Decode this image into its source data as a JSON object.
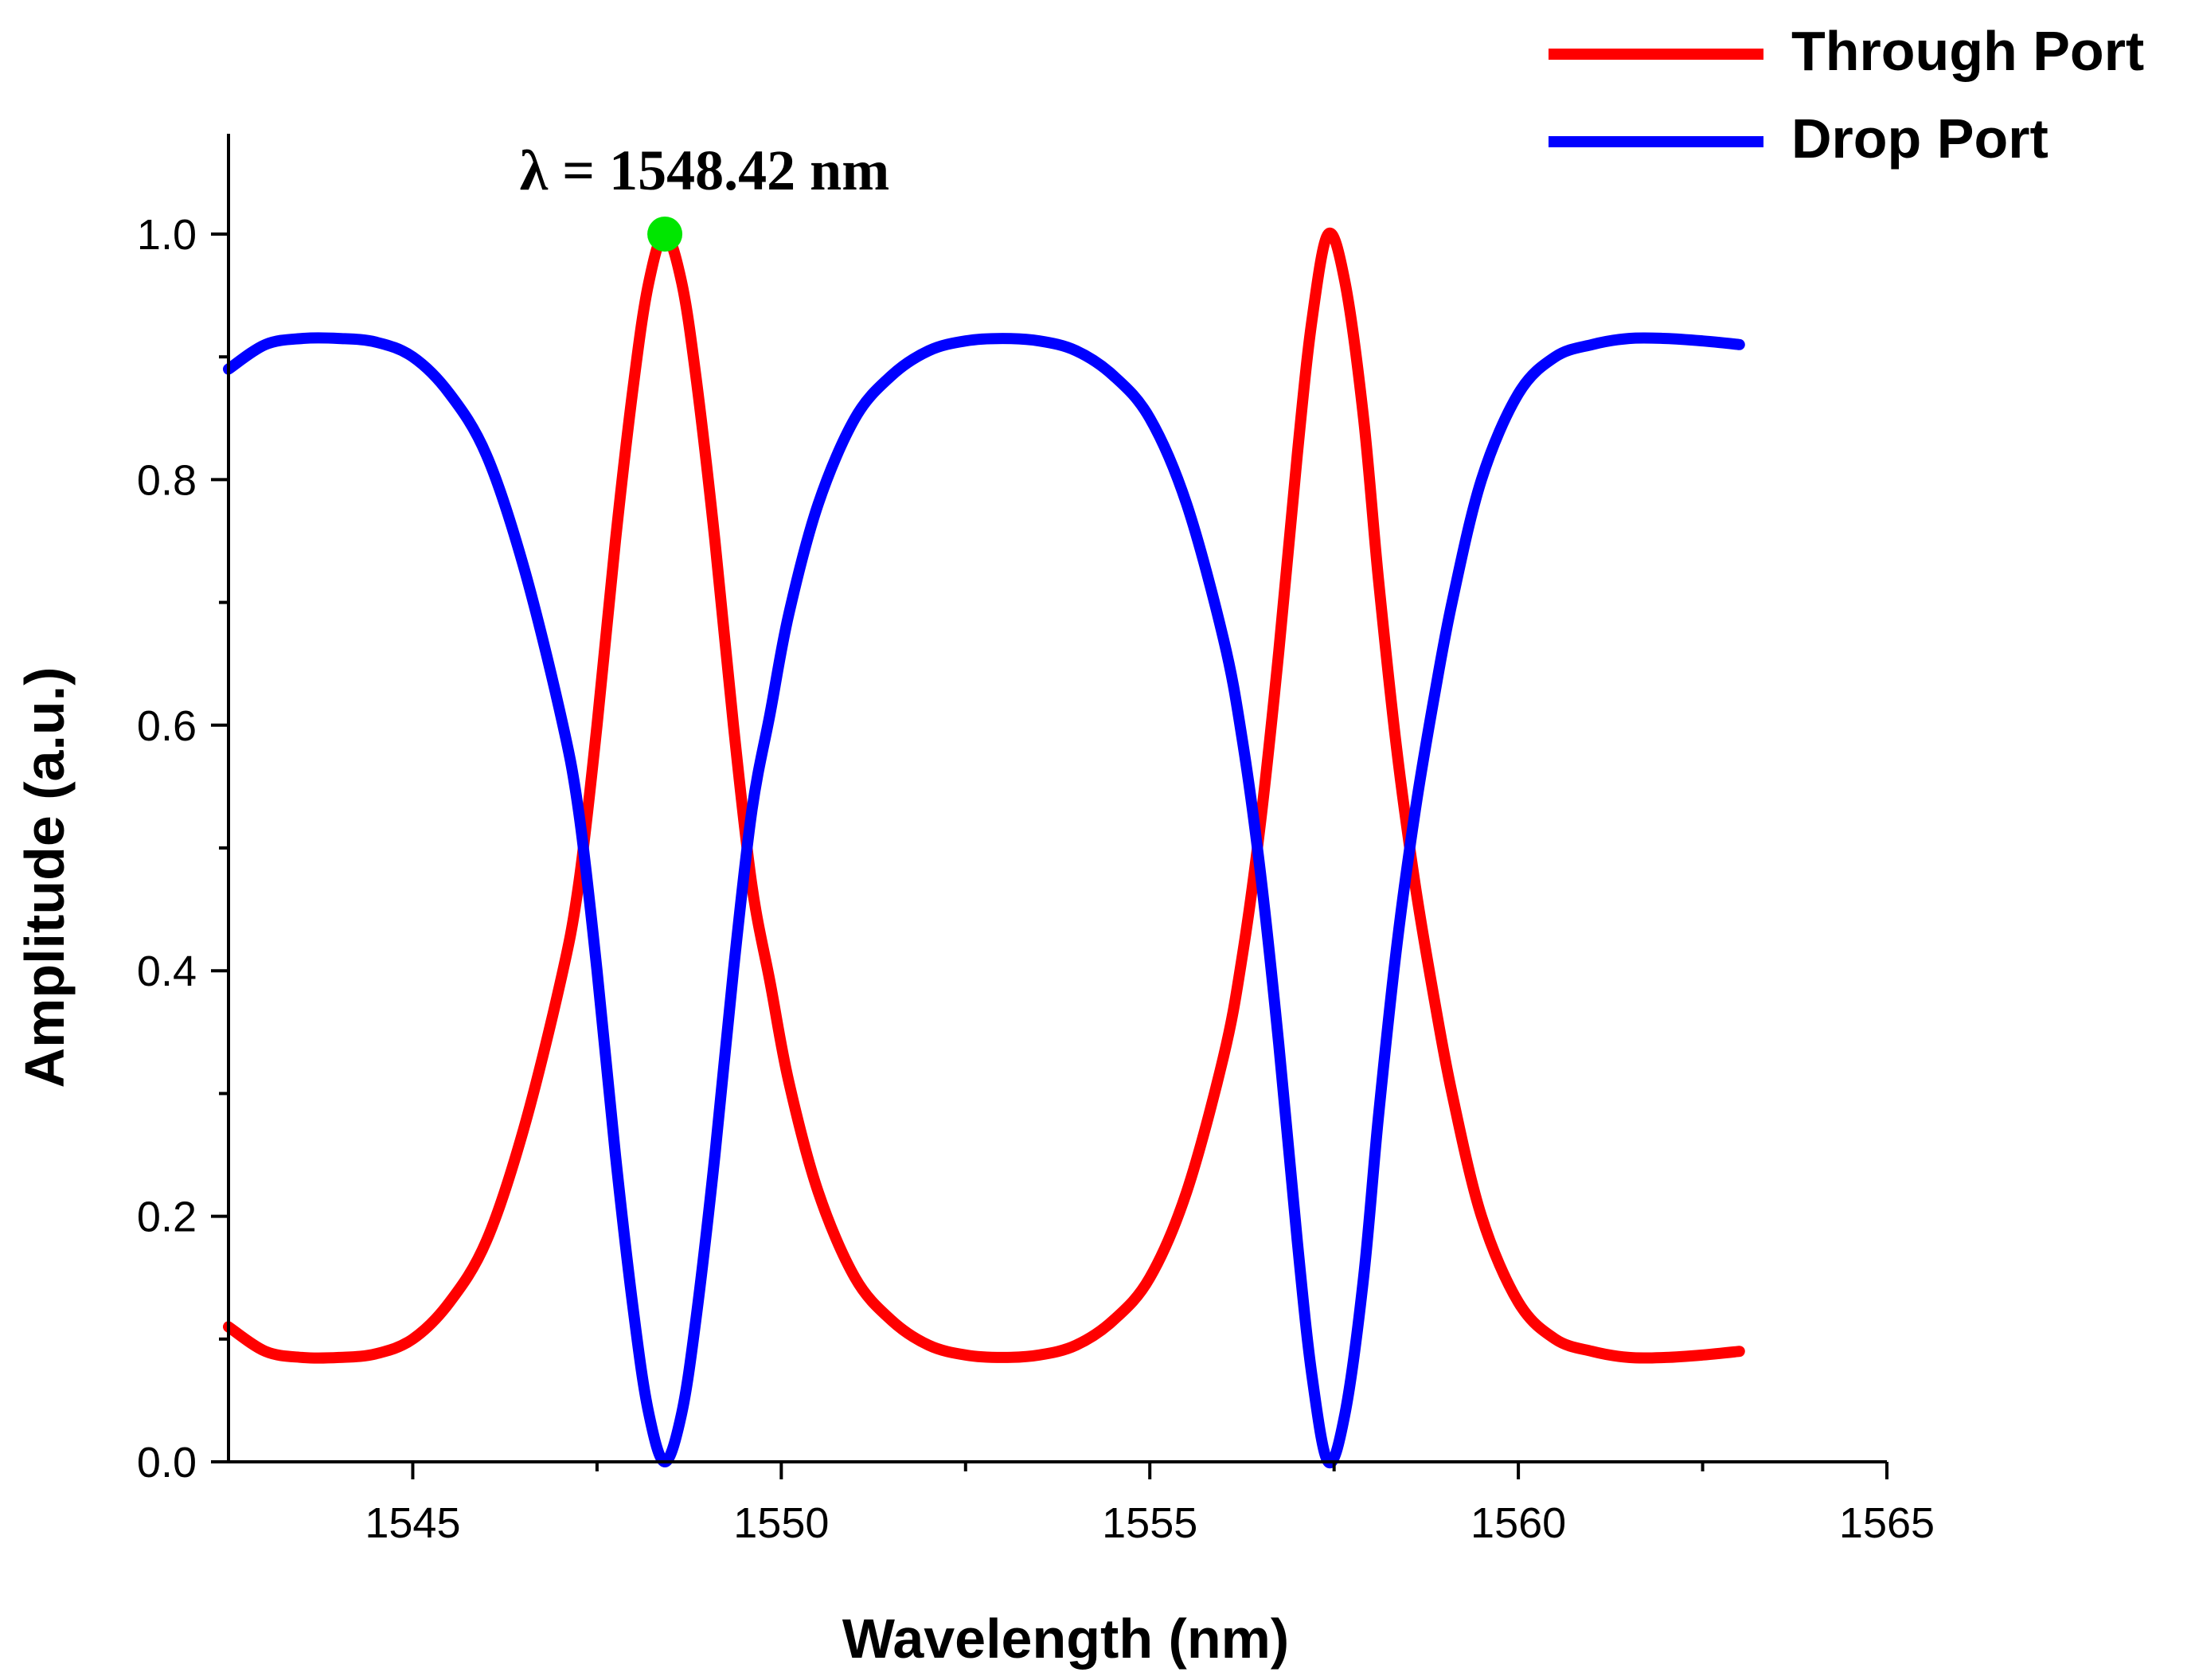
{
  "chart_data": {
    "type": "line",
    "title": "",
    "xlabel": "Wavelength (nm)",
    "ylabel": "Amplitude (a.u.)",
    "xlim": [
      1542.5,
      1565
    ],
    "ylim": [
      0,
      1.08
    ],
    "x_ticks": [
      1545,
      1550,
      1555,
      1560,
      1565
    ],
    "x_tick_labels": [
      "1545",
      "1550",
      "1555",
      "1560",
      "1565"
    ],
    "y_ticks": [
      0.0,
      0.2,
      0.4,
      0.6,
      0.8,
      1.0
    ],
    "y_tick_labels": [
      "0.0",
      "0.2",
      "0.4",
      "0.6",
      "0.8",
      "1.0"
    ],
    "grid": false,
    "legend_position": "top-right",
    "series": [
      {
        "name": "Through Port",
        "color": "#ff0000",
        "x": [
          1542.5,
          1543.0,
          1543.5,
          1544.0,
          1544.5,
          1545.0,
          1545.5,
          1546.0,
          1546.5,
          1547.0,
          1547.25,
          1547.5,
          1547.75,
          1548.0,
          1548.2,
          1548.42,
          1548.65,
          1548.85,
          1549.1,
          1549.35,
          1549.6,
          1549.85,
          1550.1,
          1550.5,
          1551.0,
          1551.5,
          1552.0,
          1552.5,
          1553.0,
          1553.5,
          1554.0,
          1554.5,
          1555.0,
          1555.5,
          1556.0,
          1556.25,
          1556.5,
          1556.75,
          1557.0,
          1557.2,
          1557.42,
          1557.65,
          1557.9,
          1558.1,
          1558.35,
          1558.6,
          1558.85,
          1559.1,
          1559.5,
          1560.0,
          1560.5,
          1561.0,
          1561.5,
          1562.0,
          1562.5,
          1563.0
        ],
        "y": [
          0.11,
          0.09,
          0.085,
          0.085,
          0.088,
          0.1,
          0.13,
          0.18,
          0.27,
          0.39,
          0.47,
          0.6,
          0.75,
          0.88,
          0.96,
          1.0,
          0.96,
          0.88,
          0.75,
          0.6,
          0.47,
          0.39,
          0.31,
          0.22,
          0.15,
          0.115,
          0.095,
          0.087,
          0.085,
          0.087,
          0.095,
          0.115,
          0.15,
          0.22,
          0.33,
          0.41,
          0.52,
          0.66,
          0.82,
          0.93,
          1.0,
          0.96,
          0.85,
          0.72,
          0.58,
          0.47,
          0.38,
          0.3,
          0.2,
          0.13,
          0.1,
          0.09,
          0.085,
          0.085,
          0.087,
          0.09
        ]
      },
      {
        "name": "Drop Port",
        "color": "#0000ff",
        "x": [
          1542.5,
          1543.0,
          1543.5,
          1544.0,
          1544.5,
          1545.0,
          1545.5,
          1546.0,
          1546.5,
          1547.0,
          1547.25,
          1547.5,
          1547.75,
          1548.0,
          1548.2,
          1548.42,
          1548.65,
          1548.85,
          1549.1,
          1549.35,
          1549.6,
          1549.85,
          1550.1,
          1550.5,
          1551.0,
          1551.5,
          1552.0,
          1552.5,
          1553.0,
          1553.5,
          1554.0,
          1554.5,
          1555.0,
          1555.5,
          1556.0,
          1556.25,
          1556.5,
          1556.75,
          1557.0,
          1557.2,
          1557.42,
          1557.65,
          1557.9,
          1558.1,
          1558.35,
          1558.6,
          1558.85,
          1559.1,
          1559.5,
          1560.0,
          1560.5,
          1561.0,
          1561.5,
          1562.0,
          1562.5,
          1563.0
        ],
        "y": [
          0.89,
          0.91,
          0.915,
          0.915,
          0.912,
          0.9,
          0.87,
          0.82,
          0.73,
          0.61,
          0.53,
          0.4,
          0.25,
          0.12,
          0.04,
          0.0,
          0.04,
          0.12,
          0.25,
          0.4,
          0.53,
          0.61,
          0.69,
          0.78,
          0.85,
          0.885,
          0.905,
          0.913,
          0.915,
          0.913,
          0.905,
          0.885,
          0.85,
          0.78,
          0.67,
          0.59,
          0.48,
          0.34,
          0.18,
          0.07,
          0.0,
          0.04,
          0.15,
          0.28,
          0.42,
          0.53,
          0.62,
          0.7,
          0.8,
          0.87,
          0.9,
          0.91,
          0.915,
          0.915,
          0.913,
          0.91
        ]
      }
    ],
    "annotations": [
      {
        "text": "λ = 1548.42 nm",
        "x": 1548.42,
        "y": 1.0,
        "marker_color": "#00e600"
      }
    ]
  }
}
